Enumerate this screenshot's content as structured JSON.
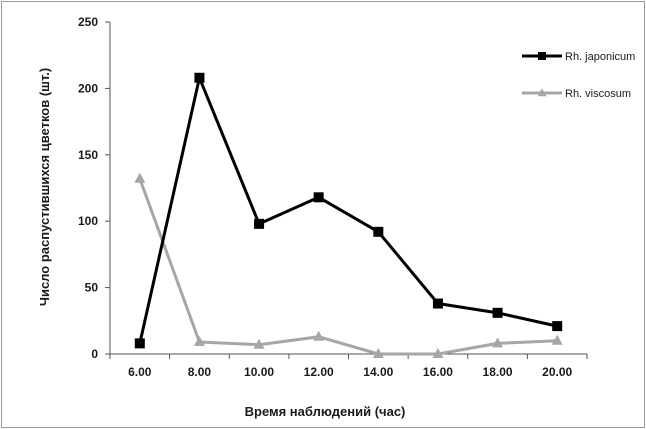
{
  "chart_data": {
    "type": "line",
    "categories": [
      "6.00",
      "8.00",
      "10.00",
      "12.00",
      "14.00",
      "16.00",
      "18.00",
      "20.00"
    ],
    "series": [
      {
        "name": "Rh. japonicum",
        "values": [
          8,
          208,
          98,
          118,
          92,
          38,
          31,
          21
        ],
        "color": "#000000",
        "marker": "square"
      },
      {
        "name": "Rh. viscosum",
        "values": [
          132,
          9,
          7,
          13,
          0,
          0,
          8,
          10
        ],
        "color": "#a6a6a6",
        "marker": "triangle"
      }
    ],
    "xlabel": "Время наблюдений (час)",
    "ylabel": "Число распустившихся цветков (шт.)",
    "yticks": [
      0,
      50,
      100,
      150,
      200,
      250
    ],
    "ylim": [
      0,
      250
    ],
    "grid": false,
    "legend_position": "top-right"
  }
}
